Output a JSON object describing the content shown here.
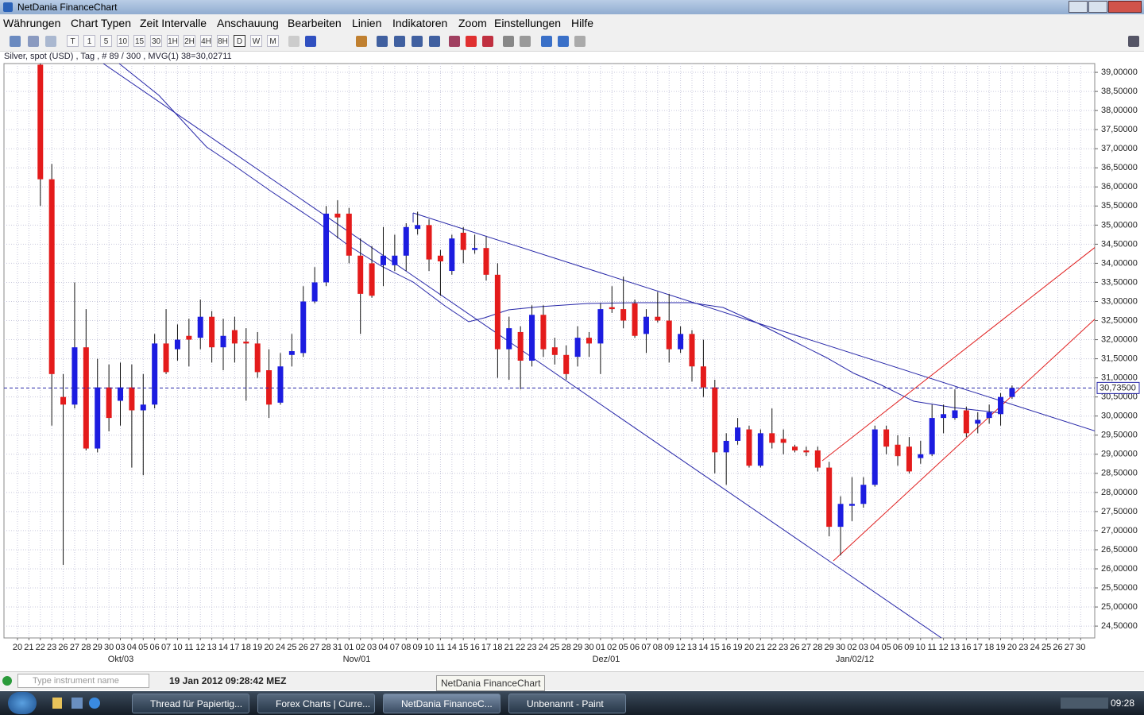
{
  "window": {
    "title": "NetDania FinanceChart"
  },
  "menu": [
    "Währungen",
    "Chart Typen",
    "Zeit Intervalle",
    "Anschauung",
    "Bearbeiten",
    "Linien",
    "Indikatoren",
    "Zoom",
    "Einstellungen",
    "Hilfe"
  ],
  "toolbar_buttons": [
    "T",
    "1",
    "5",
    "10",
    "15",
    "30",
    "1H",
    "2H",
    "4H",
    "8H",
    "D",
    "W",
    "M"
  ],
  "info": "Silver, spot (USD) , Tag , # 89 / 300 , MVG(1) 38=30,02711",
  "chart_data": {
    "type": "candlestick",
    "categories": [
      "20",
      "21",
      "22",
      "23",
      "26",
      "27",
      "28",
      "29",
      "30",
      "03",
      "04",
      "05",
      "06",
      "07",
      "10",
      "11",
      "12",
      "13",
      "14",
      "17",
      "18",
      "19",
      "20",
      "24",
      "25",
      "26",
      "27",
      "28",
      "31",
      "01",
      "02",
      "03",
      "04",
      "07",
      "08",
      "09",
      "10",
      "11",
      "14",
      "15",
      "16",
      "17",
      "18",
      "21",
      "22",
      "23",
      "24",
      "25",
      "28",
      "29",
      "30",
      "01",
      "02",
      "05",
      "06",
      "07",
      "08",
      "09",
      "12",
      "13",
      "14",
      "15",
      "16",
      "19",
      "20",
      "21",
      "22",
      "23",
      "26",
      "27",
      "28",
      "29",
      "30",
      "02",
      "03",
      "04",
      "05",
      "06",
      "09",
      "10",
      "11",
      "12",
      "13",
      "16",
      "17",
      "18",
      "19",
      "20",
      "23",
      "24",
      "25",
      "26",
      "27",
      "30"
    ],
    "x_group_labels": [
      "Okt/03",
      "Nov/01",
      "Dez/01",
      "Jan/02/12"
    ],
    "open": [
      null,
      null,
      39.2,
      36.2,
      30.5,
      30.3,
      31.8,
      29.15,
      30.75,
      30.4,
      30.75,
      30.15,
      30.3,
      31.9,
      31.75,
      32.1,
      32.05,
      32.6,
      31.8,
      32.25,
      31.95,
      31.9,
      31.2,
      30.35,
      31.6,
      31.65,
      33.0,
      33.5,
      35.3,
      35.3,
      34.2,
      34.0,
      33.95,
      33.95,
      34.2,
      34.9,
      35.0,
      34.2,
      33.8,
      34.8,
      34.35,
      34.4,
      33.7,
      31.75,
      32.2,
      31.45,
      32.65,
      31.8,
      31.6,
      31.55,
      32.05,
      31.9,
      32.85,
      32.8,
      32.95,
      32.15,
      32.6,
      32.5,
      31.75,
      32.15,
      31.3,
      30.75,
      29.05,
      29.35,
      29.65,
      28.7,
      29.55,
      29.4,
      29.2,
      29.1,
      29.1,
      28.65,
      27.1,
      27.65,
      27.7,
      28.2,
      29.65,
      29.25,
      29.2,
      28.9,
      29.0,
      29.95,
      29.95,
      30.15,
      29.8,
      29.95,
      30.05,
      30.5,
      null,
      null,
      null,
      null,
      null,
      null
    ],
    "high": [
      null,
      null,
      39.3,
      36.6,
      31.1,
      33.5,
      32.8,
      31.5,
      31.35,
      31.4,
      31.35,
      31.1,
      32.15,
      32.8,
      32.4,
      32.55,
      33.05,
      32.75,
      32.55,
      32.6,
      32.3,
      32.2,
      31.75,
      31.65,
      32.15,
      33.4,
      33.9,
      35.5,
      35.65,
      35.45,
      34.65,
      34.45,
      34.95,
      34.75,
      35.05,
      35.35,
      35.15,
      34.35,
      34.75,
      34.95,
      34.75,
      34.7,
      34.0,
      32.6,
      32.35,
      32.9,
      32.9,
      32.05,
      31.85,
      32.35,
      32.2,
      32.95,
      33.4,
      33.65,
      33.05,
      32.8,
      33.25,
      33.2,
      32.35,
      32.25,
      32.0,
      30.95,
      29.55,
      29.95,
      29.75,
      29.65,
      30.2,
      29.65,
      29.25,
      29.2,
      29.2,
      28.8,
      27.9,
      28.4,
      28.4,
      29.75,
      29.75,
      29.5,
      29.45,
      29.35,
      30.3,
      30.3,
      30.7,
      30.25,
      30.1,
      30.3,
      30.6,
      30.8,
      null,
      null,
      null,
      null,
      null,
      null
    ],
    "low": [
      null,
      null,
      35.5,
      29.75,
      26.1,
      30.2,
      29.1,
      29.05,
      29.6,
      29.75,
      28.65,
      28.45,
      30.2,
      31.1,
      31.45,
      31.3,
      31.75,
      31.4,
      31.2,
      31.4,
      30.4,
      31.0,
      29.95,
      30.3,
      31.3,
      31.55,
      32.95,
      33.4,
      34.65,
      34.0,
      32.15,
      33.1,
      33.4,
      33.8,
      33.8,
      34.75,
      33.8,
      33.15,
      33.7,
      34.0,
      34.25,
      33.55,
      31.0,
      30.95,
      30.7,
      31.3,
      31.55,
      31.35,
      30.95,
      31.3,
      31.55,
      31.1,
      32.7,
      32.3,
      32.05,
      31.65,
      32.45,
      31.4,
      31.65,
      30.9,
      30.5,
      28.5,
      28.2,
      29.25,
      28.65,
      28.65,
      29.15,
      29.0,
      29.05,
      28.95,
      28.55,
      26.85,
      26.35,
      27.25,
      27.6,
      28.15,
      29.0,
      28.7,
      28.5,
      28.75,
      28.95,
      29.55,
      29.9,
      29.45,
      29.55,
      29.8,
      29.75,
      30.45,
      null,
      null,
      null,
      null,
      null,
      null
    ],
    "close": [
      null,
      null,
      36.2,
      31.1,
      30.3,
      31.8,
      29.15,
      30.75,
      29.95,
      30.75,
      30.15,
      30.3,
      31.9,
      31.15,
      32.0,
      32.0,
      32.6,
      31.8,
      32.1,
      31.9,
      31.9,
      31.15,
      30.3,
      31.3,
      31.7,
      33.0,
      33.5,
      35.3,
      35.2,
      34.2,
      33.2,
      33.15,
      34.2,
      34.2,
      34.95,
      35.0,
      34.1,
      34.05,
      34.65,
      34.35,
      34.4,
      33.7,
      31.75,
      32.3,
      31.45,
      32.65,
      31.75,
      31.6,
      31.1,
      32.05,
      31.9,
      32.8,
      32.8,
      32.5,
      32.1,
      32.6,
      32.5,
      31.75,
      32.15,
      31.3,
      30.75,
      29.05,
      29.35,
      29.7,
      28.7,
      29.55,
      29.3,
      29.3,
      29.1,
      29.05,
      28.65,
      27.1,
      27.7,
      27.7,
      28.2,
      29.65,
      29.2,
      28.95,
      28.55,
      29.0,
      29.95,
      30.05,
      30.15,
      29.55,
      29.9,
      30.1,
      30.5,
      30.735,
      null,
      null,
      null,
      null,
      null,
      null
    ],
    "up_color": "#1c1ce0",
    "down_color": "#e41b1b",
    "ylim": [
      24.19,
      39.23
    ],
    "yticks": [
      {
        "value": 39,
        "label": "39,00000"
      },
      {
        "value": 38.5,
        "label": "38,50000"
      },
      {
        "value": 38,
        "label": "38,00000"
      },
      {
        "value": 37.5,
        "label": "37,50000"
      },
      {
        "value": 37,
        "label": "37,00000"
      },
      {
        "value": 36.5,
        "label": "36,50000"
      },
      {
        "value": 36,
        "label": "36,00000"
      },
      {
        "value": 35.5,
        "label": "35,50000"
      },
      {
        "value": 35,
        "label": "35,00000"
      },
      {
        "value": 34.5,
        "label": "34,50000"
      },
      {
        "value": 34,
        "label": "34,00000"
      },
      {
        "value": 33.5,
        "label": "33,50000"
      },
      {
        "value": 33,
        "label": "33,00000"
      },
      {
        "value": 32.5,
        "label": "32,50000"
      },
      {
        "value": 32,
        "label": "32,00000"
      },
      {
        "value": 31.5,
        "label": "31,50000"
      },
      {
        "value": 31,
        "label": "31,00000"
      },
      {
        "value": 30.5,
        "label": "30,50000"
      },
      {
        "value": 30,
        "label": "30,00000"
      },
      {
        "value": 29.5,
        "label": "29,50000"
      },
      {
        "value": 29,
        "label": "29,00000"
      },
      {
        "value": 28.5,
        "label": "28,50000"
      },
      {
        "value": 28,
        "label": "28,00000"
      },
      {
        "value": 27.5,
        "label": "27,50000"
      },
      {
        "value": 27,
        "label": "27,00000"
      },
      {
        "value": 26.5,
        "label": "26,50000"
      },
      {
        "value": 26,
        "label": "26,00000"
      },
      {
        "value": 25.5,
        "label": "25,50000"
      },
      {
        "value": 25,
        "label": "25,00000"
      },
      {
        "value": 24.5,
        "label": "24,50000"
      }
    ],
    "last_price": {
      "value": 30.735,
      "label": "30,73500"
    },
    "grid": true
  },
  "status": {
    "search_placeholder": "Type instrument name",
    "timestamp": "19 Jan 2012 09:28:42 MEZ",
    "tooltip": "NetDania FinanceChart"
  },
  "taskbar": {
    "tasks": [
      "Thread für Papiertig...",
      "Forex Charts | Curre...",
      "NetDania FinanceC...",
      "Unbenannt - Paint"
    ],
    "clock": "09:28"
  }
}
